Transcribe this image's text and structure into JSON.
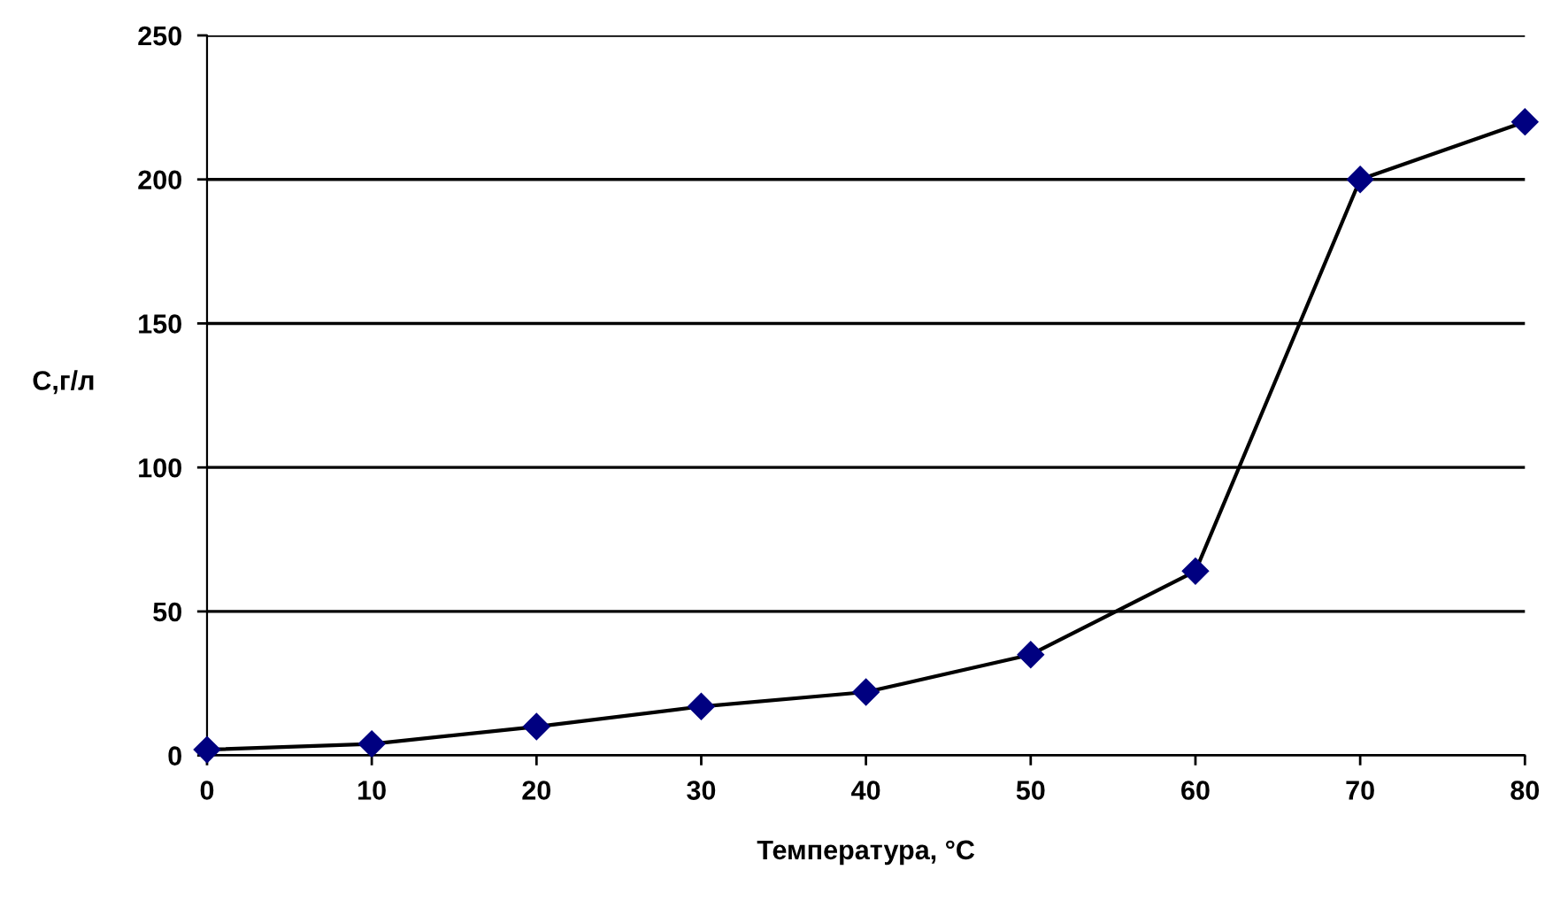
{
  "chart_data": {
    "type": "line",
    "xlabel": "Температура, °С",
    "ylabel": "С,г/л",
    "x": [
      0,
      10,
      20,
      30,
      40,
      50,
      60,
      70,
      80
    ],
    "series": [
      {
        "color": "#000080",
        "values": [
          2,
          4,
          10,
          17,
          22,
          35,
          64,
          200,
          220
        ]
      }
    ],
    "xlim": [
      0,
      80
    ],
    "xticks": [
      0,
      10,
      20,
      30,
      40,
      50,
      60,
      70,
      80
    ],
    "ylim": [
      0,
      250
    ],
    "yticks": [
      0,
      50,
      100,
      150,
      200,
      250
    ],
    "grid": "y",
    "marker": "diamond",
    "line_style": "solid",
    "legend": false
  }
}
